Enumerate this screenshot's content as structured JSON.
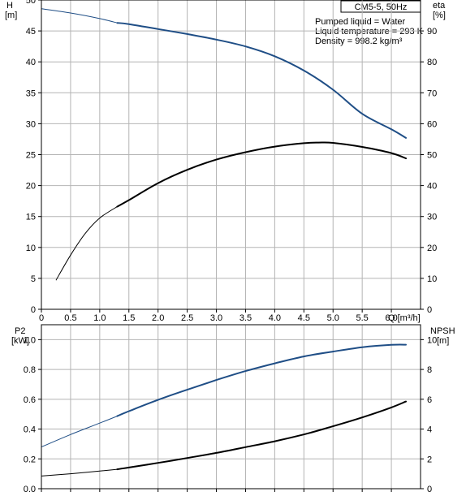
{
  "header": {
    "model_label": "CM5-5, 50Hz",
    "info_lines": [
      "Pumped liquid = Water",
      "Liquid temperature = 293 K",
      "Density = 998.2 kg/m³"
    ]
  },
  "colors": {
    "blue_series": "#1f4e86",
    "black_series": "#000000",
    "grid": "#b4b4b4"
  },
  "chart_data": [
    {
      "type": "line",
      "title": "",
      "xlabel": "Q [m³/h]",
      "x_ticks": [
        "0",
        "0.5",
        "1.0",
        "1.5",
        "2.0",
        "2.5",
        "3.0",
        "3.5",
        "4.0",
        "4.5",
        "5.0",
        "5.5",
        "6.0"
      ],
      "xlim": [
        0,
        6.5
      ],
      "left_axis": {
        "label_line1": "H",
        "label_line2": "[m]",
        "ylim": [
          0,
          50
        ],
        "ticks": [
          "0",
          "5",
          "10",
          "15",
          "20",
          "25",
          "30",
          "35",
          "40",
          "45",
          "50"
        ]
      },
      "right_axis": {
        "label_line1": "eta",
        "label_line2": "[%]",
        "ylim": [
          0,
          100
        ],
        "ticks": [
          "0",
          "10",
          "20",
          "30",
          "40",
          "50",
          "60",
          "70",
          "80",
          "90"
        ]
      },
      "grid": true,
      "series": [
        {
          "key": "head",
          "axis": "left",
          "color": "#1f4e86",
          "thin_until_x": 1.3,
          "x": [
            0,
            0.5,
            1.0,
            1.3,
            1.5,
            2.0,
            2.5,
            3.0,
            3.5,
            4.0,
            4.5,
            5.0,
            5.5,
            6.0,
            6.25
          ],
          "y": [
            48.6,
            47.9,
            47.0,
            46.3,
            46.1,
            45.3,
            44.5,
            43.6,
            42.5,
            40.9,
            38.6,
            35.5,
            31.6,
            29.1,
            27.7
          ]
        },
        {
          "key": "efficiency",
          "axis": "right",
          "color": "#000000",
          "thin_until_x": 1.3,
          "x": [
            0.25,
            0.5,
            0.75,
            1.0,
            1.3,
            1.5,
            2.0,
            2.5,
            3.0,
            3.5,
            4.0,
            4.5,
            4.75,
            5.0,
            5.5,
            6.0,
            6.25
          ],
          "y": [
            9.4,
            17.5,
            24.5,
            29.5,
            33.2,
            35.3,
            40.8,
            45.1,
            48.4,
            50.8,
            52.6,
            53.7,
            53.9,
            53.8,
            52.5,
            50.5,
            48.8
          ]
        }
      ]
    },
    {
      "type": "line",
      "title": "",
      "xlabel": "",
      "xlim": [
        0,
        6.5
      ],
      "left_axis": {
        "label_line1": "P2",
        "label_line2": "[kW]",
        "ylim": [
          0,
          1.1
        ],
        "ticks": [
          "0.0",
          "0.2",
          "0.4",
          "0.6",
          "0.8",
          "1.0"
        ]
      },
      "right_axis": {
        "label_line1": "NPSH",
        "label_line2": "[m]",
        "ylim": [
          0,
          11
        ],
        "ticks": [
          "0",
          "2",
          "4",
          "6",
          "8",
          "10"
        ]
      },
      "grid": true,
      "series": [
        {
          "key": "power",
          "axis": "left",
          "color": "#1f4e86",
          "thin_until_x": 1.3,
          "x": [
            0,
            0.5,
            1.0,
            1.3,
            1.5,
            2.0,
            2.5,
            3.0,
            3.5,
            4.0,
            4.5,
            5.0,
            5.5,
            6.0,
            6.25
          ],
          "y": [
            0.28,
            0.363,
            0.44,
            0.487,
            0.52,
            0.596,
            0.664,
            0.729,
            0.789,
            0.841,
            0.887,
            0.92,
            0.949,
            0.965,
            0.966
          ]
        },
        {
          "key": "npsh",
          "axis": "right",
          "color": "#000000",
          "thin_until_x": 1.3,
          "x": [
            0,
            0.5,
            1.0,
            1.3,
            1.5,
            2.0,
            2.5,
            3.0,
            3.5,
            4.0,
            4.5,
            5.0,
            5.5,
            6.0,
            6.25
          ],
          "y": [
            0.85,
            1.0,
            1.18,
            1.3,
            1.42,
            1.73,
            2.06,
            2.4,
            2.79,
            3.18,
            3.64,
            4.19,
            4.78,
            5.45,
            5.85
          ]
        }
      ]
    }
  ]
}
